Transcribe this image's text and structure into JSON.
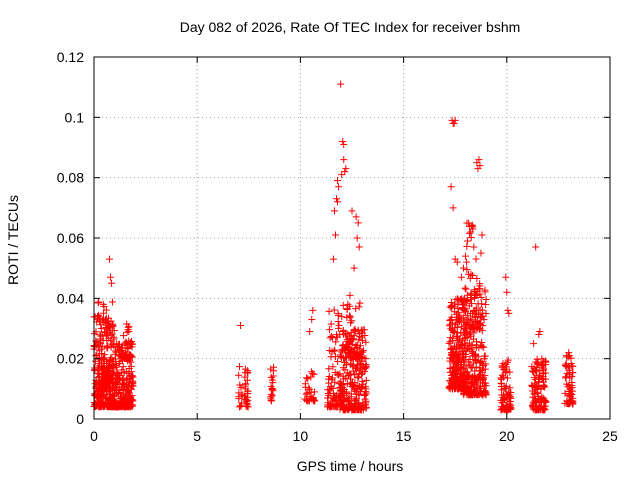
{
  "chart_data": {
    "type": "scatter",
    "title": "Day 082 of 2026, Rate Of TEC Index for receiver bshm",
    "xlabel": "GPS time / hours",
    "ylabel": "ROTI / TECUs",
    "xlim": [
      0,
      25
    ],
    "ylim": [
      0,
      0.12
    ],
    "xticks": [
      "0",
      "5",
      "10",
      "15",
      "20",
      "25"
    ],
    "yticks": [
      "0",
      "0.02",
      "0.04",
      "0.06",
      "0.08",
      "0.1",
      "0.12"
    ],
    "grid": true,
    "legend": "none",
    "marker": "plus",
    "color": "#ff0000",
    "clusters": [
      {
        "x": [
          0.0,
          1.0
        ],
        "y": [
          0.004,
          0.035
        ],
        "n": 260
      },
      {
        "x": [
          0.2,
          0.9
        ],
        "y": [
          0.01,
          0.039
        ],
        "n": 90
      },
      {
        "x": [
          1.0,
          1.9
        ],
        "y": [
          0.004,
          0.026
        ],
        "n": 220
      },
      {
        "x": [
          1.4,
          1.8
        ],
        "y": [
          0.02,
          0.032
        ],
        "n": 30
      },
      {
        "x": [
          7.0,
          7.5
        ],
        "y": [
          0.004,
          0.018
        ],
        "n": 40
      },
      {
        "x": [
          8.5,
          8.7
        ],
        "y": [
          0.006,
          0.019
        ],
        "n": 18
      },
      {
        "x": [
          10.2,
          10.7
        ],
        "y": [
          0.006,
          0.016
        ],
        "n": 30
      },
      {
        "x": [
          11.3,
          11.9
        ],
        "y": [
          0.004,
          0.04
        ],
        "n": 80
      },
      {
        "x": [
          11.9,
          13.2
        ],
        "y": [
          0.003,
          0.03
        ],
        "n": 260
      },
      {
        "x": [
          12.0,
          13.0
        ],
        "y": [
          0.02,
          0.04
        ],
        "n": 60
      },
      {
        "x": [
          17.2,
          18.0
        ],
        "y": [
          0.01,
          0.04
        ],
        "n": 240
      },
      {
        "x": [
          17.9,
          19.0
        ],
        "y": [
          0.008,
          0.045
        ],
        "n": 260
      },
      {
        "x": [
          18.0,
          18.6
        ],
        "y": [
          0.03,
          0.065
        ],
        "n": 40
      },
      {
        "x": [
          19.7,
          20.2
        ],
        "y": [
          0.003,
          0.02
        ],
        "n": 80
      },
      {
        "x": [
          21.2,
          21.9
        ],
        "y": [
          0.003,
          0.02
        ],
        "n": 130
      },
      {
        "x": [
          22.8,
          23.2
        ],
        "y": [
          0.005,
          0.022
        ],
        "n": 60
      }
    ],
    "points": [
      [
        0.75,
        0.053
      ],
      [
        0.8,
        0.047
      ],
      [
        0.85,
        0.045
      ],
      [
        7.1,
        0.031
      ],
      [
        10.55,
        0.033
      ],
      [
        10.6,
        0.036
      ],
      [
        10.45,
        0.029
      ],
      [
        11.95,
        0.111
      ],
      [
        11.8,
        0.079
      ],
      [
        11.85,
        0.077
      ],
      [
        12.0,
        0.081
      ],
      [
        12.05,
        0.092
      ],
      [
        12.1,
        0.091
      ],
      [
        12.1,
        0.086
      ],
      [
        12.15,
        0.082
      ],
      [
        12.2,
        0.083
      ],
      [
        11.75,
        0.073
      ],
      [
        11.8,
        0.072
      ],
      [
        11.65,
        0.069
      ],
      [
        11.7,
        0.061
      ],
      [
        11.6,
        0.053
      ],
      [
        12.7,
        0.067
      ],
      [
        12.8,
        0.065
      ],
      [
        12.75,
        0.06
      ],
      [
        12.85,
        0.057
      ],
      [
        12.5,
        0.069
      ],
      [
        12.6,
        0.05
      ],
      [
        12.4,
        0.041
      ],
      [
        12.3,
        0.038
      ],
      [
        17.35,
        0.099
      ],
      [
        17.4,
        0.098
      ],
      [
        17.45,
        0.098
      ],
      [
        17.5,
        0.099
      ],
      [
        17.3,
        0.077
      ],
      [
        17.4,
        0.07
      ],
      [
        17.5,
        0.053
      ],
      [
        17.6,
        0.052
      ],
      [
        18.55,
        0.085
      ],
      [
        18.6,
        0.083
      ],
      [
        18.65,
        0.086
      ],
      [
        18.7,
        0.084
      ],
      [
        18.3,
        0.064
      ],
      [
        18.25,
        0.062
      ],
      [
        18.35,
        0.063
      ],
      [
        18.1,
        0.059
      ],
      [
        18.8,
        0.061
      ],
      [
        18.75,
        0.055
      ],
      [
        18.0,
        0.054
      ],
      [
        17.8,
        0.047
      ],
      [
        17.9,
        0.05
      ],
      [
        18.4,
        0.057
      ],
      [
        20.0,
        0.042
      ],
      [
        20.05,
        0.036
      ],
      [
        20.1,
        0.035
      ],
      [
        19.95,
        0.047
      ],
      [
        21.4,
        0.057
      ],
      [
        21.55,
        0.028
      ],
      [
        21.6,
        0.029
      ],
      [
        21.3,
        0.025
      ],
      [
        23.0,
        0.022
      ],
      [
        22.9,
        0.021
      ]
    ]
  }
}
